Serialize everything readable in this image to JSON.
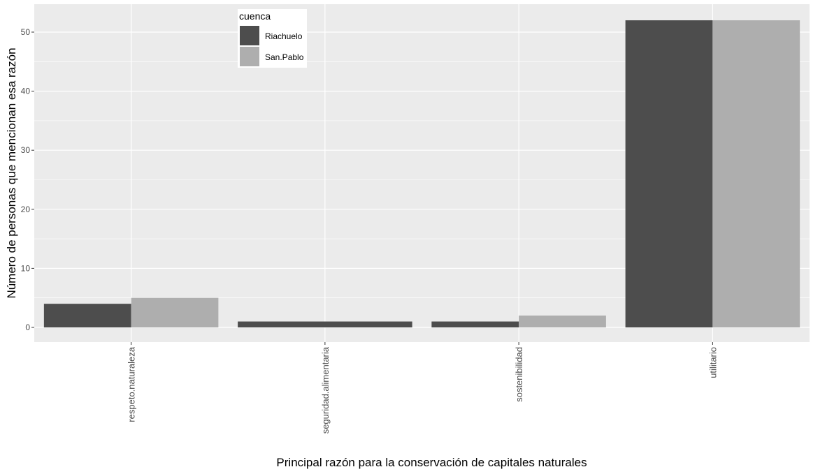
{
  "chart_data": {
    "type": "bar",
    "title": "",
    "xlabel": "Principal razón para la conservación de capitales naturales",
    "ylabel": "Número de personas que mencionan esa razón",
    "categories": [
      "respeto.naturaleza",
      "seguridad.alimentaria",
      "sostenibilidad",
      "utilitario"
    ],
    "series": [
      {
        "name": "Riachuelo",
        "color": "#4d4d4d",
        "values": [
          4,
          1,
          1,
          52
        ]
      },
      {
        "name": "San.Pablo",
        "color": "#aeaeae",
        "values": [
          5,
          null,
          2,
          52
        ]
      }
    ],
    "ylim": [
      -2.6,
      54.6
    ],
    "yticks": [
      0,
      10,
      20,
      30,
      40,
      50
    ],
    "grid": true,
    "legend": {
      "title": "cuenca",
      "position": "inside-top-left"
    },
    "bar_mode": "dodge"
  },
  "colors": {
    "panel_bg": "#ebebeb",
    "grid": "#ffffff",
    "riachuelo": "#4d4d4d",
    "san_pablo": "#aeaeae"
  }
}
